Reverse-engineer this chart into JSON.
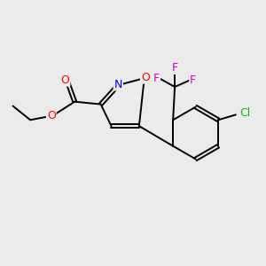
{
  "background_color": "#ebebeb",
  "atom_colors": {
    "C": "#000000",
    "O": "#ff0000",
    "N": "#0000ff",
    "F": "#cc00cc",
    "Cl": "#00bb00"
  },
  "bond_color": "#000000",
  "figsize": [
    3.0,
    3.0
  ],
  "dpi": 100,
  "lw": 1.4,
  "fontsize": 9.5
}
